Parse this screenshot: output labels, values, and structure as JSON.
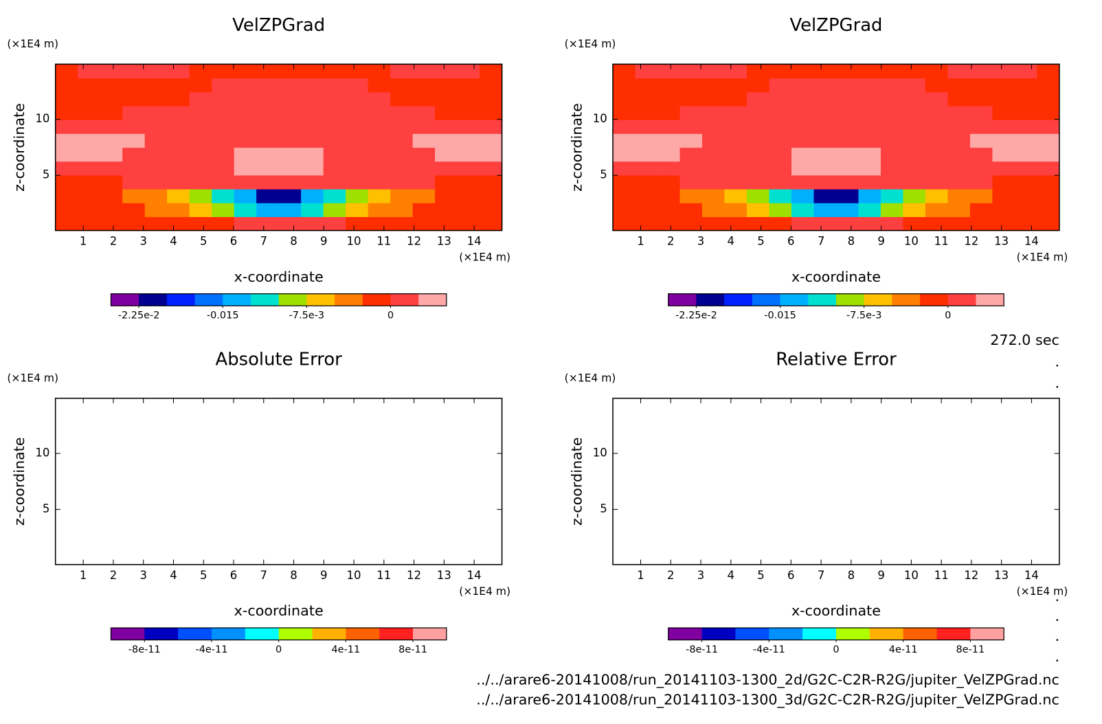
{
  "chart_data": [
    {
      "type": "contour",
      "title": "VelZPGrad",
      "x_label": "x-coordinate",
      "y_label": "z-coordinate",
      "x_unit": "(×1E4 m)",
      "y_unit": "(×1E4 m)",
      "xlim": [
        0.075,
        14.925
      ],
      "ylim": [
        0.075,
        14.925
      ],
      "xticks": [
        1,
        2,
        3,
        4,
        5,
        6,
        7,
        8,
        9,
        10,
        11,
        12,
        13,
        14
      ],
      "yticks": [
        5,
        10
      ],
      "x_edges": [
        0.075,
        0.8175,
        1.56,
        2.3025,
        3.045,
        3.7875,
        4.53,
        5.2725,
        6.015,
        6.7575,
        7.5,
        8.2425,
        8.985,
        9.7275,
        10.47,
        11.2125,
        11.955,
        12.6975,
        13.44,
        14.1825,
        14.925
      ],
      "z_edges": [
        0.075,
        1.3125,
        2.55,
        3.7875,
        5.025,
        6.2625,
        7.5,
        8.7375,
        9.975,
        11.2125,
        12.45,
        13.6875,
        14.925
      ],
      "field": [
        [
          -0.001,
          -0.001,
          -0.001,
          -0.001,
          -0.001,
          -0.001,
          -0.001,
          -0.001,
          0.001,
          0.001,
          0.001,
          0.001,
          0.001,
          -0.001,
          -0.001,
          -0.001,
          -0.001,
          -0.001,
          -0.001,
          -0.001
        ],
        [
          -0.001,
          -0.001,
          -0.001,
          -0.001,
          -0.004,
          -0.004,
          -0.006,
          -0.008,
          -0.011,
          -0.014,
          -0.014,
          -0.011,
          -0.008,
          -0.006,
          -0.004,
          -0.004,
          -0.001,
          -0.001,
          -0.001,
          -0.001
        ],
        [
          -0.001,
          -0.001,
          -0.001,
          -0.004,
          -0.004,
          -0.006,
          -0.008,
          -0.011,
          -0.014,
          -0.021,
          -0.021,
          -0.014,
          -0.011,
          -0.008,
          -0.006,
          -0.004,
          -0.004,
          -0.001,
          -0.001,
          -0.001
        ],
        [
          -0.001,
          -0.001,
          -0.001,
          0.001,
          0.001,
          0.001,
          0.001,
          0.001,
          0.001,
          0.001,
          0.001,
          0.001,
          0.001,
          0.001,
          0.001,
          0.001,
          0.001,
          -0.001,
          -0.001,
          -0.001
        ],
        [
          0.001,
          0.001,
          0.001,
          0.001,
          0.001,
          0.001,
          0.001,
          0.001,
          0.003,
          0.003,
          0.003,
          0.003,
          0.001,
          0.001,
          0.001,
          0.001,
          0.001,
          0.001,
          0.001,
          0.001
        ],
        [
          0.003,
          0.003,
          0.003,
          0.001,
          0.001,
          0.001,
          0.001,
          0.001,
          0.003,
          0.003,
          0.003,
          0.003,
          0.001,
          0.001,
          0.001,
          0.001,
          0.001,
          0.003,
          0.003,
          0.003
        ],
        [
          0.003,
          0.003,
          0.003,
          0.003,
          0.001,
          0.001,
          0.001,
          0.001,
          0.001,
          0.001,
          0.001,
          0.001,
          0.001,
          0.001,
          0.001,
          0.001,
          0.003,
          0.003,
          0.003,
          0.003
        ],
        [
          0.001,
          0.001,
          0.001,
          0.001,
          0.001,
          0.001,
          0.001,
          0.001,
          0.001,
          0.001,
          0.001,
          0.001,
          0.001,
          0.001,
          0.001,
          0.001,
          0.001,
          0.001,
          0.001,
          0.001
        ],
        [
          -0.001,
          -0.001,
          -0.001,
          0.001,
          0.001,
          0.001,
          0.001,
          0.001,
          0.001,
          0.001,
          0.001,
          0.001,
          0.001,
          0.001,
          0.001,
          0.001,
          0.001,
          -0.001,
          -0.001,
          -0.001
        ],
        [
          -0.001,
          -0.001,
          -0.001,
          -0.001,
          -0.001,
          -0.001,
          0.001,
          0.001,
          0.001,
          0.001,
          0.001,
          0.001,
          0.001,
          0.001,
          0.001,
          -0.001,
          -0.001,
          -0.001,
          -0.001,
          -0.001
        ],
        [
          -0.001,
          -0.001,
          -0.001,
          -0.001,
          -0.001,
          -0.001,
          -0.001,
          0.001,
          0.001,
          0.001,
          0.001,
          0.001,
          0.001,
          0.001,
          -0.001,
          -0.001,
          -0.001,
          -0.001,
          -0.001,
          -0.001
        ],
        [
          -0.001,
          0.001,
          0.001,
          0.001,
          0.001,
          0.001,
          -0.001,
          -0.001,
          -0.001,
          -0.001,
          -0.001,
          -0.001,
          -0.001,
          -0.001,
          -0.001,
          0.001,
          0.001,
          0.001,
          0.001,
          -0.001
        ]
      ],
      "colorbar": {
        "levels": [
          -0.0225,
          -0.02,
          -0.0175,
          -0.015,
          -0.0125,
          -0.01,
          -0.0075,
          -0.005,
          -0.0025,
          0,
          0.0025
        ],
        "colors": [
          "#7f00a0",
          "#000090",
          "#0020ff",
          "#0070ff",
          "#00b0ff",
          "#00e0d0",
          "#a0e000",
          "#ffc000",
          "#ff8000",
          "#ff2e00",
          "#ff4040",
          "#ffa8a8"
        ],
        "ticks": [
          {
            "value": -0.0225,
            "label": "-2.25e-2"
          },
          -0.015,
          {
            "value": -0.0075,
            "label": "-7.5e-3"
          },
          0
        ]
      }
    },
    {
      "type": "contour",
      "title": "VelZPGrad",
      "x_label": "x-coordinate",
      "y_label": "z-coordinate",
      "x_unit": "(×1E4 m)",
      "y_unit": "(×1E4 m)",
      "xlim": [
        0.075,
        14.925
      ],
      "ylim": [
        0.075,
        14.925
      ],
      "xticks": [
        1,
        2,
        3,
        4,
        5,
        6,
        7,
        8,
        9,
        10,
        11,
        12,
        13,
        14
      ],
      "yticks": [
        5,
        10
      ],
      "x_edges": [
        0.075,
        0.8175,
        1.56,
        2.3025,
        3.045,
        3.7875,
        4.53,
        5.2725,
        6.015,
        6.7575,
        7.5,
        8.2425,
        8.985,
        9.7275,
        10.47,
        11.2125,
        11.955,
        12.6975,
        13.44,
        14.1825,
        14.925
      ],
      "z_edges": [
        0.075,
        1.3125,
        2.55,
        3.7875,
        5.025,
        6.2625,
        7.5,
        8.7375,
        9.975,
        11.2125,
        12.45,
        13.6875,
        14.925
      ],
      "field": [
        [
          -0.001,
          -0.001,
          -0.001,
          -0.001,
          -0.001,
          -0.001,
          -0.001,
          -0.001,
          0.001,
          0.001,
          0.001,
          0.001,
          0.001,
          -0.001,
          -0.001,
          -0.001,
          -0.001,
          -0.001,
          -0.001,
          -0.001
        ],
        [
          -0.001,
          -0.001,
          -0.001,
          -0.001,
          -0.004,
          -0.004,
          -0.006,
          -0.008,
          -0.011,
          -0.014,
          -0.014,
          -0.011,
          -0.008,
          -0.006,
          -0.004,
          -0.004,
          -0.001,
          -0.001,
          -0.001,
          -0.001
        ],
        [
          -0.001,
          -0.001,
          -0.001,
          -0.004,
          -0.004,
          -0.006,
          -0.008,
          -0.011,
          -0.014,
          -0.021,
          -0.021,
          -0.014,
          -0.011,
          -0.008,
          -0.006,
          -0.004,
          -0.004,
          -0.001,
          -0.001,
          -0.001
        ],
        [
          -0.001,
          -0.001,
          -0.001,
          0.001,
          0.001,
          0.001,
          0.001,
          0.001,
          0.001,
          0.001,
          0.001,
          0.001,
          0.001,
          0.001,
          0.001,
          0.001,
          0.001,
          -0.001,
          -0.001,
          -0.001
        ],
        [
          0.001,
          0.001,
          0.001,
          0.001,
          0.001,
          0.001,
          0.001,
          0.001,
          0.003,
          0.003,
          0.003,
          0.003,
          0.001,
          0.001,
          0.001,
          0.001,
          0.001,
          0.001,
          0.001,
          0.001
        ],
        [
          0.003,
          0.003,
          0.003,
          0.001,
          0.001,
          0.001,
          0.001,
          0.001,
          0.003,
          0.003,
          0.003,
          0.003,
          0.001,
          0.001,
          0.001,
          0.001,
          0.001,
          0.003,
          0.003,
          0.003
        ],
        [
          0.003,
          0.003,
          0.003,
          0.003,
          0.001,
          0.001,
          0.001,
          0.001,
          0.001,
          0.001,
          0.001,
          0.001,
          0.001,
          0.001,
          0.001,
          0.001,
          0.003,
          0.003,
          0.003,
          0.003
        ],
        [
          0.001,
          0.001,
          0.001,
          0.001,
          0.001,
          0.001,
          0.001,
          0.001,
          0.001,
          0.001,
          0.001,
          0.001,
          0.001,
          0.001,
          0.001,
          0.001,
          0.001,
          0.001,
          0.001,
          0.001
        ],
        [
          -0.001,
          -0.001,
          -0.001,
          0.001,
          0.001,
          0.001,
          0.001,
          0.001,
          0.001,
          0.001,
          0.001,
          0.001,
          0.001,
          0.001,
          0.001,
          0.001,
          0.001,
          -0.001,
          -0.001,
          -0.001
        ],
        [
          -0.001,
          -0.001,
          -0.001,
          -0.001,
          -0.001,
          -0.001,
          0.001,
          0.001,
          0.001,
          0.001,
          0.001,
          0.001,
          0.001,
          0.001,
          0.001,
          -0.001,
          -0.001,
          -0.001,
          -0.001,
          -0.001
        ],
        [
          -0.001,
          -0.001,
          -0.001,
          -0.001,
          -0.001,
          -0.001,
          -0.001,
          0.001,
          0.001,
          0.001,
          0.001,
          0.001,
          0.001,
          0.001,
          -0.001,
          -0.001,
          -0.001,
          -0.001,
          -0.001,
          -0.001
        ],
        [
          -0.001,
          0.001,
          0.001,
          0.001,
          0.001,
          0.001,
          -0.001,
          -0.001,
          -0.001,
          -0.001,
          -0.001,
          -0.001,
          -0.001,
          -0.001,
          -0.001,
          0.001,
          0.001,
          0.001,
          0.001,
          -0.001
        ]
      ],
      "colorbar": {
        "levels": [
          -0.0225,
          -0.02,
          -0.0175,
          -0.015,
          -0.0125,
          -0.01,
          -0.0075,
          -0.005,
          -0.0025,
          0,
          0.0025
        ],
        "colors": [
          "#7f00a0",
          "#000090",
          "#0020ff",
          "#0070ff",
          "#00b0ff",
          "#00e0d0",
          "#a0e000",
          "#ffc000",
          "#ff8000",
          "#ff2e00",
          "#ff4040",
          "#ffa8a8"
        ],
        "ticks": [
          {
            "value": -0.0225,
            "label": "-2.25e-2"
          },
          -0.015,
          {
            "value": -0.0075,
            "label": "-7.5e-3"
          },
          0
        ]
      }
    },
    {
      "type": "contour",
      "title": "Absolute Error",
      "x_label": "x-coordinate",
      "y_label": "z-coordinate",
      "x_unit": "(×1E4 m)",
      "y_unit": "(×1E4 m)",
      "xlim": [
        0.075,
        14.925
      ],
      "ylim": [
        0.075,
        14.925
      ],
      "xticks": [
        1,
        2,
        3,
        4,
        5,
        6,
        7,
        8,
        9,
        10,
        11,
        12,
        13,
        14
      ],
      "yticks": [
        5,
        10
      ],
      "colorbar": {
        "levels": [
          -8e-11,
          -6e-11,
          -4e-11,
          -2e-11,
          0,
          2e-11,
          4e-11,
          6e-11,
          8e-11
        ],
        "colors": [
          "#8000a0",
          "#0000c0",
          "#0050ff",
          "#0090ff",
          "#00ffff",
          "#b0ff00",
          "#ffb000",
          "#ff6000",
          "#ff2020",
          "#ffa0a0"
        ],
        "ticks": [
          -8e-11,
          -4e-11,
          0,
          4e-11,
          8e-11
        ]
      }
    },
    {
      "type": "contour",
      "title": "Relative Error",
      "x_label": "x-coordinate",
      "y_label": "z-coordinate",
      "x_unit": "(×1E4 m)",
      "y_unit": "(×1E4 m)",
      "xlim": [
        0.075,
        14.925
      ],
      "ylim": [
        0.075,
        14.925
      ],
      "xticks": [
        1,
        2,
        3,
        4,
        5,
        6,
        7,
        8,
        9,
        10,
        11,
        12,
        13,
        14
      ],
      "yticks": [
        5,
        10
      ],
      "colorbar": {
        "levels": [
          -8e-11,
          -6e-11,
          -4e-11,
          -2e-11,
          0,
          2e-11,
          4e-11,
          6e-11,
          8e-11
        ],
        "colors": [
          "#8000a0",
          "#0000c0",
          "#0050ff",
          "#0090ff",
          "#00ffff",
          "#b0ff00",
          "#ffb000",
          "#ff6000",
          "#ff2020",
          "#ffa0a0"
        ],
        "ticks": [
          -8e-11,
          -4e-11,
          0,
          4e-11,
          8e-11
        ]
      }
    }
  ],
  "time_label": "272.0 sec",
  "files": [
    "../../arare6-20141008/run_20141103-1300_2d/G2C-C2R-R2G/jupiter_VelZPGrad.nc",
    "../../arare6-20141008/run_20141103-1300_3d/G2C-C2R-R2G/jupiter_VelZPGrad.nc"
  ]
}
